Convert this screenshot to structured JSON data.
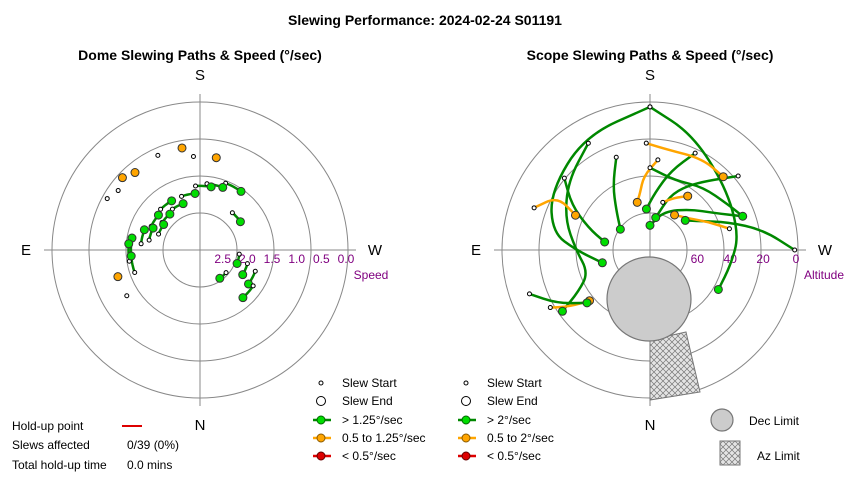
{
  "chart_data": {
    "type": "polar-scatter",
    "title": "Slewing Performance: 2024-02-24 S01191",
    "colors": {
      "grid": "#888888",
      "fast": "#00dd00",
      "fast_line": "#008800",
      "medium": "#ffa500",
      "slow": "#dd0000",
      "speed_label": "#800080",
      "limit_fill": "#cccccc",
      "limit_stroke": "#777777"
    },
    "compass": {
      "south": "S",
      "north": "N",
      "east": "E",
      "west": "W"
    },
    "dome": {
      "title": "Dome Slewing Paths & Speed (°/sec)",
      "radial_axis_label": "Speed",
      "radial_ticks": [
        "2.5",
        "2.0",
        "1.5",
        "1.0",
        "0.5",
        "0.0"
      ],
      "radial_range": [
        0.0,
        3.0
      ],
      "radial_inverted": true,
      "legend": {
        "start": "Slew Start",
        "end": "Slew End",
        "fast": "> 1.25°/sec",
        "medium": "0.5 to 1.25°/sec",
        "slow": "< 0.5°/sec"
      },
      "slews": [
        {
          "az": 160,
          "speed": 2.0,
          "class": "fast"
        },
        {
          "az": 150,
          "speed": 1.85,
          "class": "fast"
        },
        {
          "az": 140,
          "speed": 2.05,
          "class": "fast"
        },
        {
          "az": 130,
          "speed": 1.9,
          "class": "fast"
        },
        {
          "az": 125,
          "speed": 2.1,
          "class": "fast"
        },
        {
          "az": 115,
          "speed": 1.95,
          "class": "fast"
        },
        {
          "az": 110,
          "speed": 1.8,
          "class": "fast"
        },
        {
          "az": 100,
          "speed": 1.6,
          "class": "fast"
        },
        {
          "az": 95,
          "speed": 1.55,
          "class": "fast"
        },
        {
          "az": 85,
          "speed": 1.6,
          "class": "fast"
        },
        {
          "az": 215,
          "speed": 1.55,
          "class": "fast"
        },
        {
          "az": 200,
          "speed": 1.65,
          "class": "fast"
        },
        {
          "az": 190,
          "speed": 1.7,
          "class": "fast"
        },
        {
          "az": 175,
          "speed": 1.85,
          "class": "fast"
        },
        {
          "az": 235,
          "speed": 2.0,
          "class": "fast"
        },
        {
          "az": 300,
          "speed": 2.0,
          "class": "fast"
        },
        {
          "az": 305,
          "speed": 1.8,
          "class": "fast"
        },
        {
          "az": 318,
          "speed": 1.7,
          "class": "fast"
        },
        {
          "az": 290,
          "speed": 2.2,
          "class": "fast"
        },
        {
          "az": 325,
          "speed": 2.3,
          "class": "fast"
        },
        {
          "az": 170,
          "speed": 0.9,
          "class": "medium"
        },
        {
          "az": 190,
          "speed": 1.1,
          "class": "medium"
        },
        {
          "az": 140,
          "speed": 0.95,
          "class": "medium"
        },
        {
          "az": 133,
          "speed": 0.85,
          "class": "medium"
        },
        {
          "az": 72,
          "speed": 1.25,
          "class": "medium"
        }
      ],
      "stats": {
        "holdup_label": "Hold-up point",
        "affected_label": "Slews affected",
        "affected_value": "0/39 (0%)",
        "total_label": "Total hold-up time",
        "total_value": "0.0 mins"
      }
    },
    "scope": {
      "title": "Scope Slewing Paths & Speed (°/sec)",
      "radial_axis_label": "Altitude",
      "radial_ticks": [
        "60",
        "40",
        "20",
        "0"
      ],
      "radial_range": [
        0,
        90
      ],
      "legend": {
        "start": "Slew Start",
        "end": "Slew End",
        "fast": "> 2°/sec",
        "medium": "0.5 to 2°/sec",
        "slow": "< 0.5°/sec",
        "dec_limit": "Dec Limit",
        "az_limit": "Az Limit"
      },
      "paths": [
        {
          "class": "fast",
          "points": [
            [
              180,
              3
            ],
            [
              150,
              10
            ],
            [
              120,
              20
            ],
            [
              100,
              30
            ],
            [
              90,
              45
            ],
            [
              75,
              60
            ]
          ]
        },
        {
          "class": "fast",
          "points": [
            [
              180,
              3
            ],
            [
              200,
              15
            ],
            [
              230,
              30
            ],
            [
              260,
              35
            ],
            [
              280,
              40
            ],
            [
              300,
              42
            ]
          ]
        },
        {
          "class": "fast",
          "points": [
            [
              150,
              15
            ],
            [
              130,
              25
            ],
            [
              110,
              35
            ],
            [
              90,
              45
            ],
            [
              70,
              50
            ],
            [
              60,
              40
            ],
            [
              55,
              25
            ]
          ]
        },
        {
          "class": "fast",
          "points": [
            [
              230,
              20
            ],
            [
              220,
              35
            ],
            [
              210,
              45
            ],
            [
              200,
              55
            ],
            [
              190,
              70
            ]
          ]
        },
        {
          "class": "fast",
          "points": [
            [
              250,
              30
            ],
            [
              240,
              45
            ],
            [
              225,
              55
            ],
            [
              200,
              65
            ],
            [
              180,
              75
            ]
          ]
        },
        {
          "class": "fast",
          "points": [
            [
              270,
              2
            ],
            [
              260,
              20
            ],
            [
              250,
              40
            ],
            [
              240,
              55
            ],
            [
              230,
              62
            ]
          ]
        },
        {
          "class": "fast",
          "points": [
            [
              180,
              40
            ],
            [
              200,
              45
            ],
            [
              220,
              40
            ],
            [
              240,
              35
            ],
            [
              250,
              30
            ]
          ]
        },
        {
          "class": "fast",
          "points": [
            [
              130,
              22
            ],
            [
              120,
              35
            ],
            [
              110,
              50
            ],
            [
              100,
              62
            ]
          ]
        },
        {
          "class": "fast",
          "points": [
            [
              160,
              30
            ],
            [
              150,
              45
            ],
            [
              140,
              58
            ],
            [
              125,
              68
            ]
          ]
        },
        {
          "class": "fast",
          "points": [
            [
              205,
              25
            ],
            [
              195,
              40
            ],
            [
              185,
              55
            ],
            [
              175,
              65
            ]
          ]
        },
        {
          "class": "medium",
          "points": [
            [
              178,
              25
            ],
            [
              190,
              28
            ],
            [
              210,
              26
            ],
            [
              225,
              27
            ]
          ]
        },
        {
          "class": "medium",
          "points": [
            [
              185,
              35
            ],
            [
              175,
              45
            ],
            [
              170,
              55
            ],
            [
              165,
              60
            ]
          ]
        },
        {
          "class": "medium",
          "points": [
            [
              255,
              40
            ],
            [
              245,
              50
            ],
            [
              230,
              60
            ],
            [
              215,
              64
            ]
          ]
        },
        {
          "class": "medium",
          "points": [
            [
              110,
              15
            ],
            [
              120,
              25
            ],
            [
              115,
              40
            ]
          ]
        },
        {
          "class": "medium",
          "points": [
            [
              60,
              20
            ],
            [
              55,
              30
            ],
            [
              50,
              42
            ]
          ]
        },
        {
          "class": "medium",
          "points": [
            [
              195,
              60
            ],
            [
              205,
              55
            ],
            [
              215,
              50
            ]
          ]
        },
        {
          "class": "fast",
          "points": [
            [
              70,
              12
            ],
            [
              60,
              25
            ],
            [
              50,
              40
            ]
          ]
        }
      ]
    }
  }
}
